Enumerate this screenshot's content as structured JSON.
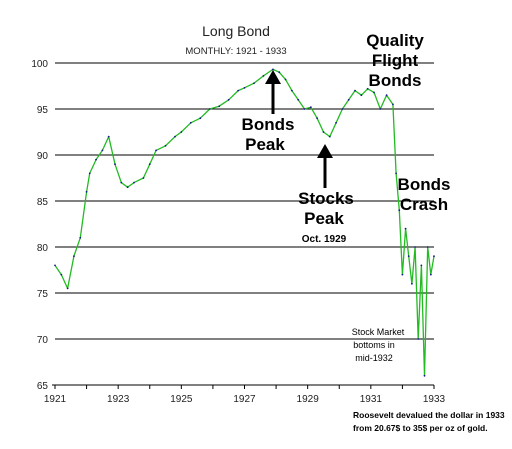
{
  "chart_data": {
    "type": "line",
    "title": "Long Bond",
    "subtitle": "MONTHLY: 1921 - 1933",
    "xlabel": "",
    "ylabel": "",
    "xlim": [
      1921,
      1933
    ],
    "ylim": [
      65,
      100
    ],
    "x_ticks": [
      "1921",
      "1923",
      "1925",
      "1927",
      "1929",
      "1931",
      "1933"
    ],
    "y_ticks": [
      "65",
      "70",
      "75",
      "80",
      "85",
      "90",
      "95",
      "100"
    ],
    "grid": "horizontal",
    "colors": {
      "series": "#22bb22",
      "grid": "#000000",
      "text": "#000000"
    },
    "series": [
      {
        "x": [
          1921.0,
          1921.2,
          1921.4,
          1921.6,
          1921.8,
          1922.0,
          1922.1,
          1922.3,
          1922.5,
          1922.7,
          1922.9,
          1923.1,
          1923.3,
          1923.5,
          1923.8,
          1924.0,
          1924.2,
          1924.5,
          1924.8,
          1925.0,
          1925.3,
          1925.6,
          1925.9,
          1926.2,
          1926.5,
          1926.8,
          1927.0,
          1927.3,
          1927.6,
          1927.9,
          1928.1,
          1928.3,
          1928.5,
          1928.7,
          1928.9,
          1929.1,
          1929.3,
          1929.5,
          1929.7,
          1929.9,
          1930.1,
          1930.3,
          1930.5,
          1930.7,
          1930.9,
          1931.1,
          1931.3,
          1931.5,
          1931.7,
          1931.8,
          1931.9,
          1932.0,
          1932.1,
          1932.2,
          1932.3,
          1932.4,
          1932.5,
          1932.6,
          1932.7,
          1932.8,
          1932.9,
          1933.0
        ],
        "values": [
          78,
          77,
          75.5,
          79,
          81,
          86,
          88,
          89.5,
          90.5,
          92,
          89,
          87,
          86.5,
          87,
          87.5,
          89,
          90.5,
          91,
          92,
          92.5,
          93.5,
          94,
          95,
          95.3,
          96,
          97,
          97.3,
          97.8,
          98.6,
          99.3,
          99,
          98.2,
          97,
          96,
          95,
          95.2,
          94,
          92.5,
          92,
          93.5,
          95,
          96,
          97,
          96.5,
          97.2,
          96.8,
          95,
          96.5,
          95.5,
          88,
          84,
          77,
          82,
          79,
          76,
          80,
          70,
          78,
          66,
          80,
          77,
          79
        ]
      }
    ],
    "annotations": {
      "quality_line1": "Quality",
      "quality_line2": "Flight",
      "quality_line3": "Bonds",
      "bonds_peak_line1": "Bonds",
      "bonds_peak_line2": "Peak",
      "stocks_peak_line1": "Stocks",
      "stocks_peak_line2": "Peak",
      "stocks_peak_date": "Oct. 1929",
      "bonds_crash_line1": "Bonds",
      "bonds_crash_line2": "Crash",
      "stock_bottom_line1": "Stock Market",
      "stock_bottom_line2": "bottoms in",
      "stock_bottom_line3": "mid-1932",
      "footnote_line1": "Roosevelt devalued the dollar in 1933",
      "footnote_line2": "from 20.67$  to 35$ per oz of gold."
    }
  }
}
